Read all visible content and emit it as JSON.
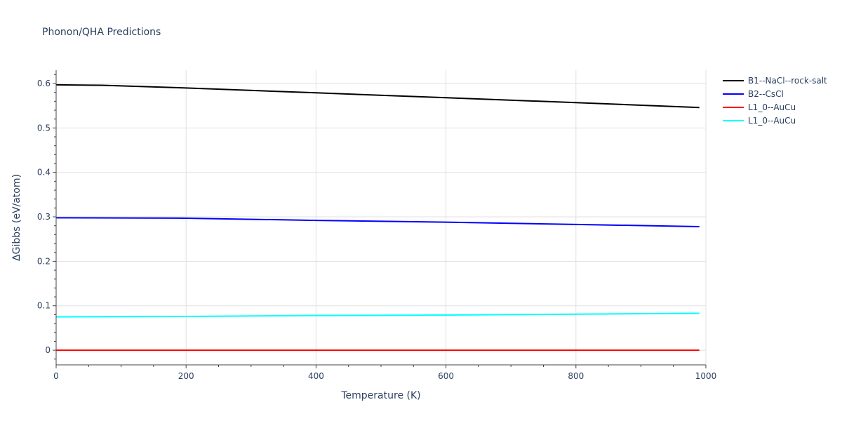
{
  "chart_data": {
    "type": "line",
    "title": "Phonon/QHA Predictions",
    "xlabel": "Temperature (K)",
    "ylabel": "ΔGibbs (eV/atom)",
    "xlim": [
      0,
      1000
    ],
    "ylim": [
      -0.033,
      0.63
    ],
    "xticks": [
      0,
      200,
      400,
      600,
      800,
      1000
    ],
    "yticks": [
      0,
      0.1,
      0.2,
      0.3,
      0.4,
      0.5,
      0.6
    ],
    "ytick_labels": [
      "0",
      "0.1",
      "0.2",
      "0.3",
      "0.4",
      "0.5",
      "0.6"
    ],
    "grid": true,
    "legend_position": "right",
    "series": [
      {
        "name": "B1--NaCl--rock-salt",
        "color": "#000000",
        "x": [
          0,
          70,
          200,
          400,
          600,
          800,
          990
        ],
        "y": [
          0.597,
          0.596,
          0.59,
          0.579,
          0.568,
          0.557,
          0.546
        ]
      },
      {
        "name": "B2--CsCl",
        "color": "#0000ff",
        "x": [
          0,
          200,
          400,
          600,
          800,
          990
        ],
        "y": [
          0.298,
          0.297,
          0.292,
          0.288,
          0.283,
          0.278
        ]
      },
      {
        "name": "L1_0--AuCu",
        "color": "#ff0000",
        "x": [
          0,
          200,
          400,
          600,
          800,
          990
        ],
        "y": [
          0,
          0,
          0,
          0,
          0,
          0
        ]
      },
      {
        "name": "L1_0--AuCu",
        "color": "#00ffff",
        "x": [
          0,
          200,
          400,
          600,
          800,
          990
        ],
        "y": [
          0.075,
          0.076,
          0.078,
          0.079,
          0.081,
          0.083
        ]
      }
    ]
  }
}
